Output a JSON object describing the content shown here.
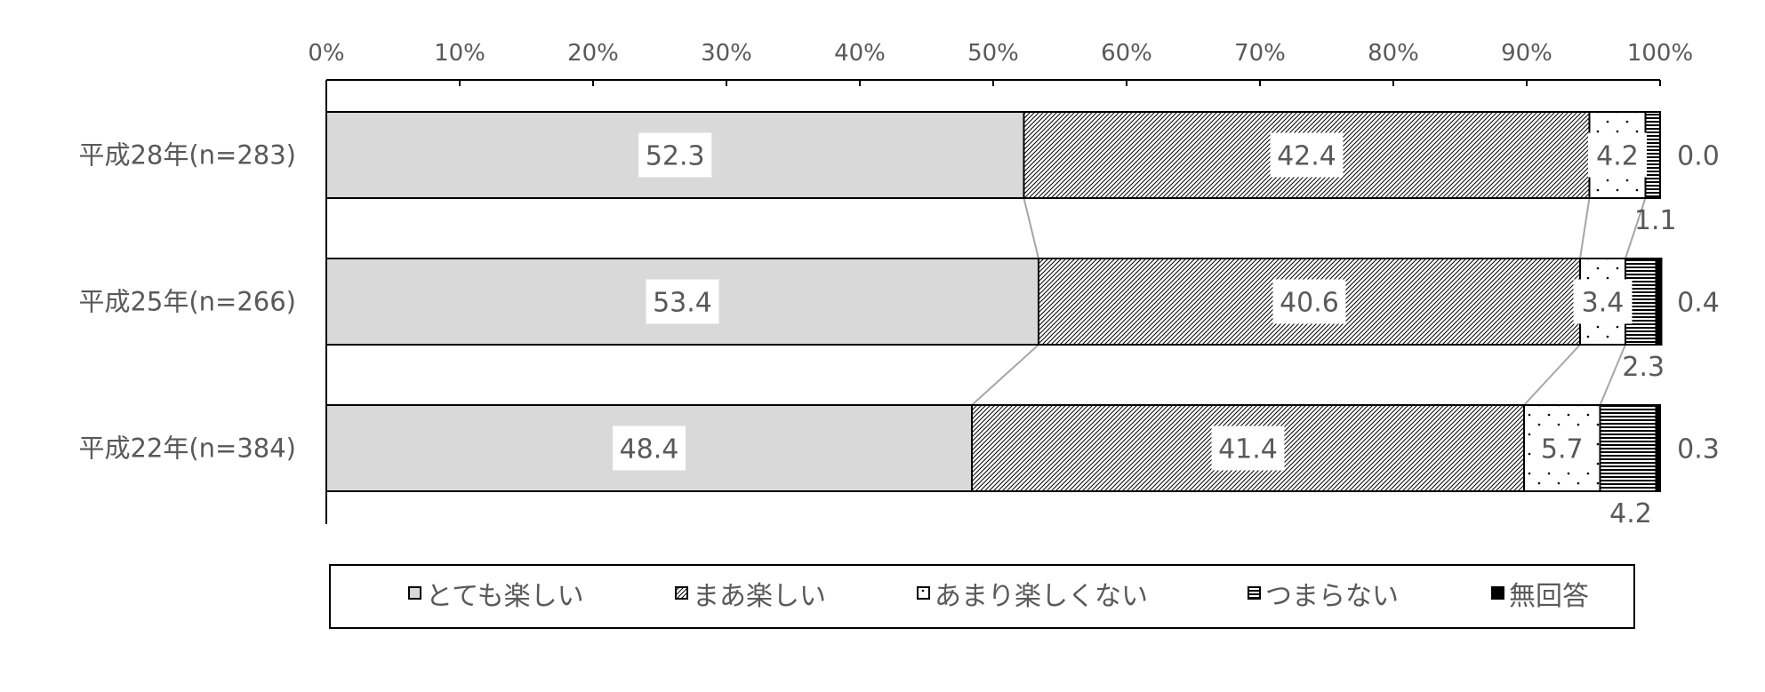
{
  "chart_data": {
    "type": "bar",
    "orientation": "horizontal",
    "stacked": true,
    "percent_scale": true,
    "categories": [
      "平成28年(n=283)",
      "平成25年(n=266)",
      "平成22年(n=384)"
    ],
    "series": [
      {
        "name": "とても楽しい",
        "values": [
          52.3,
          53.4,
          48.4
        ],
        "fill": "solid-gray"
      },
      {
        "name": "まあ楽しい",
        "values": [
          42.4,
          40.6,
          41.4
        ],
        "fill": "diagonal-hatch"
      },
      {
        "name": "あまり楽しくない",
        "values": [
          4.2,
          3.4,
          5.7
        ],
        "fill": "dots"
      },
      {
        "name": "つまらない",
        "values": [
          1.1,
          2.3,
          4.2
        ],
        "fill": "horizontal-stripes"
      },
      {
        "name": "無回答",
        "values": [
          0.0,
          0.4,
          0.3
        ],
        "fill": "solid-black"
      }
    ],
    "data_labels": {
      "bar_values": [
        [
          "52.3",
          "42.4",
          "4.2"
        ],
        [
          "53.4",
          "40.6",
          "3.4"
        ],
        [
          "48.4",
          "41.4",
          "5.7"
        ]
      ],
      "tsumaranai_values": [
        "1.1",
        "2.3",
        "4.2"
      ],
      "mukaitou_values": [
        "0.0",
        "0.4",
        "0.3"
      ]
    },
    "x_ticks": [
      "0%",
      "10%",
      "20%",
      "30%",
      "40%",
      "50%",
      "60%",
      "70%",
      "80%",
      "90%",
      "100%"
    ],
    "xlim": [
      0,
      100
    ],
    "axis_position": "top",
    "series_connector_lines": true,
    "legend_position": "bottom",
    "colors": {
      "text": "#595959",
      "solid": "#d9d9d9",
      "outline": "#000000",
      "connector": "#a6a6a6"
    }
  }
}
